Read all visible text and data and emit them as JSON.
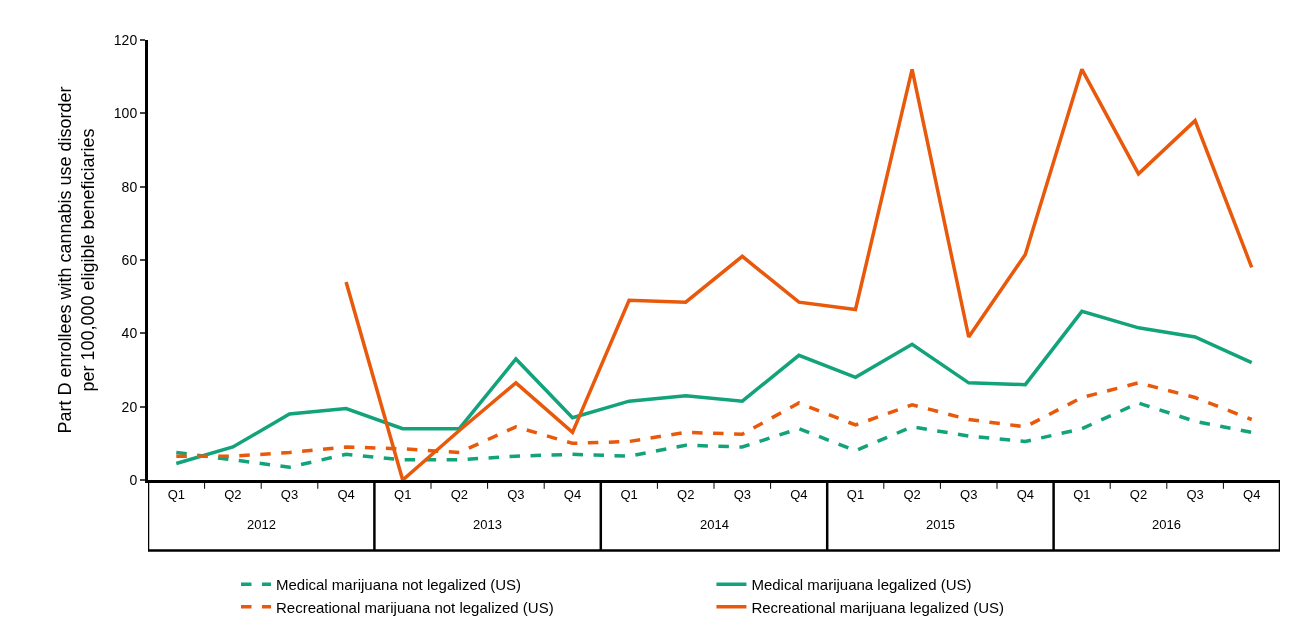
{
  "chart_data": {
    "type": "line",
    "ylabel": "Part D enrollees with cannabis use disorder\nper 100,000 eligible beneficiaries",
    "categories": [
      "Q1",
      "Q2",
      "Q3",
      "Q4",
      "Q1",
      "Q2",
      "Q3",
      "Q4",
      "Q1",
      "Q2",
      "Q3",
      "Q4",
      "Q1",
      "Q2",
      "Q3",
      "Q4",
      "Q1",
      "Q2",
      "Q3",
      "Q4"
    ],
    "annotations": [
      "2012",
      "2013",
      "2014",
      "2015",
      "2016"
    ],
    "series": [
      {
        "name": "Medical marijuana not legalized (US)",
        "color": "#13a37a",
        "line_style": "dashed",
        "values": [
          7.5,
          5.5,
          3.5,
          7,
          5.5,
          5.5,
          6.5,
          7,
          6.5,
          9.5,
          9,
          14,
          8,
          14.5,
          12,
          10.5,
          14,
          21,
          16,
          13
        ]
      },
      {
        "name": "Medical marijuana legalized (US)",
        "color": "#13a37a",
        "line_style": "solid",
        "values": [
          4.5,
          9,
          18,
          19.5,
          14,
          14,
          33,
          17,
          21.5,
          23,
          21.5,
          34,
          28,
          37,
          26.5,
          26,
          46,
          41.5,
          39,
          32
        ]
      },
      {
        "name": "Recreational marijuana not legalized (US)",
        "color": "#e8590c",
        "line_style": "dashed",
        "values": [
          6.5,
          6.5,
          7.5,
          9,
          8.5,
          7.5,
          14.5,
          10,
          10.5,
          13,
          12.5,
          21,
          15,
          20.5,
          16.5,
          14.5,
          22.5,
          26.5,
          22.5,
          16.5
        ]
      },
      {
        "name": "Recreational marijuana legalized (US)",
        "color": "#e8590c",
        "line_style": "solid",
        "values": [
          null,
          null,
          null,
          54,
          0,
          13.5,
          26.5,
          13,
          49,
          48.5,
          61,
          48.5,
          46.5,
          112,
          39,
          61.5,
          112,
          83.5,
          98,
          58
        ]
      }
    ],
    "ylim": [
      0,
      120
    ],
    "yticks": [
      0,
      20,
      40,
      60,
      80,
      100,
      120
    ],
    "legend": "bottom",
    "marker": "none"
  }
}
